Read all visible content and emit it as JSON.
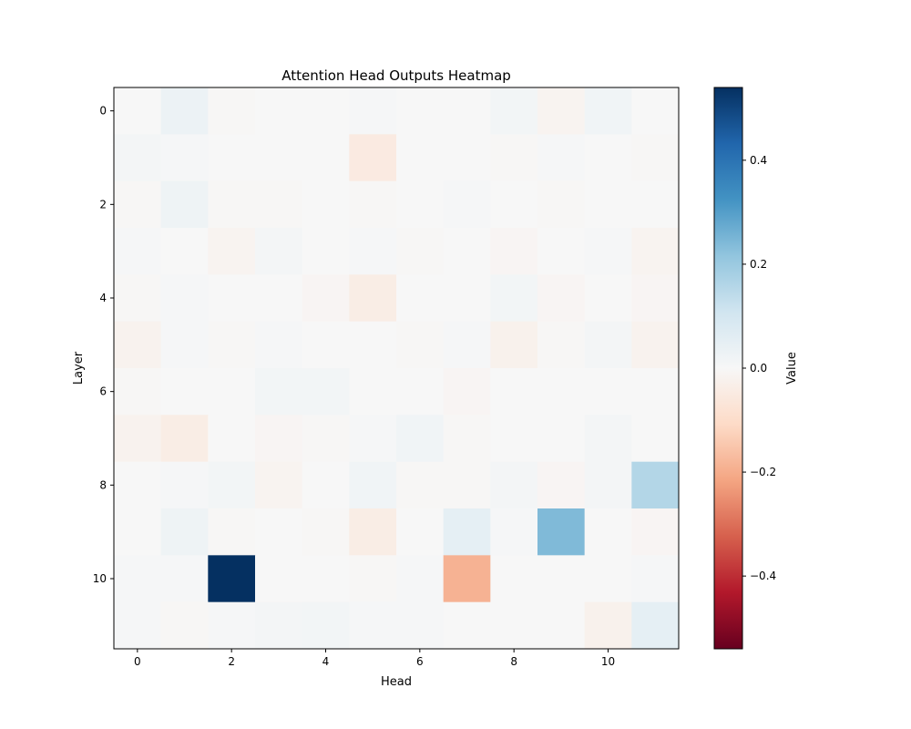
{
  "chart_data": {
    "type": "heatmap",
    "title": "Attention Head Outputs Heatmap",
    "xlabel": "Head",
    "ylabel": "Layer",
    "x_ticks": [
      "0",
      "2",
      "4",
      "6",
      "8",
      "10"
    ],
    "y_ticks": [
      "0",
      "2",
      "4",
      "6",
      "8",
      "10"
    ],
    "colorbar": {
      "label": "Value",
      "colormap": "RdBu",
      "vmin": -0.54,
      "vmax": 0.54,
      "ticks": [
        "0.4",
        "0.2",
        "0.0",
        "−0.2",
        "−0.4"
      ],
      "tick_values": [
        0.4,
        0.2,
        0.0,
        -0.2,
        -0.4
      ]
    },
    "grid": false,
    "x_range": [
      -0.5,
      11.5
    ],
    "y_range": [
      -0.5,
      11.5
    ],
    "layers": [
      0,
      1,
      2,
      3,
      4,
      5,
      6,
      7,
      8,
      9,
      10,
      11
    ],
    "heads": [
      0,
      1,
      2,
      3,
      4,
      5,
      6,
      7,
      8,
      9,
      10,
      11
    ],
    "values": [
      [
        0.0,
        0.03,
        -0.005,
        0.0,
        0.0,
        0.005,
        0.0,
        0.0,
        0.015,
        -0.015,
        0.02,
        0.0
      ],
      [
        0.01,
        0.005,
        0.0,
        0.0,
        0.0,
        -0.05,
        0.0,
        0.0,
        -0.005,
        0.005,
        0.0,
        -0.005
      ],
      [
        -0.005,
        0.025,
        -0.005,
        -0.005,
        0.0,
        -0.005,
        0.0,
        0.005,
        0.0,
        -0.005,
        0.0,
        0.0
      ],
      [
        0.005,
        0.0,
        -0.015,
        0.01,
        0.0,
        0.005,
        -0.005,
        0.0,
        -0.01,
        0.0,
        0.005,
        -0.015
      ],
      [
        -0.005,
        0.005,
        0.0,
        0.0,
        -0.01,
        -0.04,
        0.0,
        0.0,
        0.015,
        -0.01,
        0.0,
        -0.01
      ],
      [
        -0.02,
        0.005,
        -0.005,
        0.005,
        0.0,
        0.0,
        -0.005,
        0.005,
        -0.025,
        -0.005,
        0.01,
        -0.02
      ],
      [
        -0.005,
        0.0,
        0.0,
        0.015,
        0.015,
        0.0,
        0.0,
        -0.01,
        0.0,
        0.0,
        0.0,
        0.0
      ],
      [
        -0.02,
        -0.04,
        0.0,
        -0.01,
        -0.005,
        0.005,
        0.02,
        -0.005,
        0.0,
        0.0,
        0.01,
        0.0
      ],
      [
        0.0,
        0.005,
        0.015,
        -0.015,
        0.0,
        0.02,
        -0.005,
        -0.005,
        0.01,
        -0.01,
        0.01,
        0.16
      ],
      [
        0.0,
        0.025,
        -0.005,
        0.0,
        -0.005,
        -0.04,
        0.0,
        0.05,
        0.005,
        0.24,
        0.0,
        -0.01
      ],
      [
        0.005,
        0.005,
        0.54,
        0.0,
        0.0,
        -0.005,
        0.005,
        -0.19,
        0.0,
        0.0,
        0.0,
        0.005
      ],
      [
        0.005,
        -0.005,
        0.005,
        0.01,
        0.015,
        0.005,
        0.005,
        0.0,
        0.0,
        0.0,
        -0.025,
        0.05
      ]
    ]
  }
}
